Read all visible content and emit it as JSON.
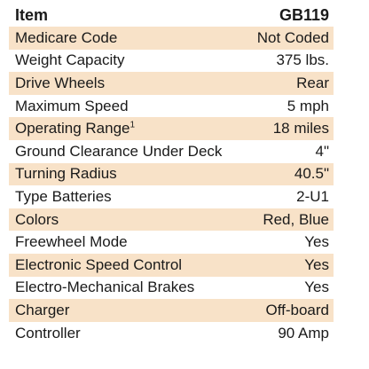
{
  "table": {
    "header": {
      "label": "Item",
      "value": "GB119"
    },
    "rows": [
      {
        "label": "Medicare Code",
        "value": "Not Coded",
        "shaded": true
      },
      {
        "label": "Weight Capacity",
        "value": "375 lbs.",
        "shaded": false
      },
      {
        "label": "Drive Wheels",
        "value": "Rear",
        "shaded": true
      },
      {
        "label": "Maximum Speed",
        "value": "5 mph",
        "shaded": false
      },
      {
        "label": "Operating Range",
        "sup": "1",
        "value": "18 miles",
        "shaded": true
      },
      {
        "label": "Ground Clearance Under Deck",
        "value": "4\"",
        "shaded": false
      },
      {
        "label": "Turning Radius",
        "value": "40.5\"",
        "shaded": true
      },
      {
        "label": "Type Batteries",
        "value": "2-U1",
        "shaded": false
      },
      {
        "label": "Colors",
        "value": "Red, Blue",
        "shaded": true
      },
      {
        "label": "Freewheel Mode",
        "value": "Yes",
        "shaded": false
      },
      {
        "label": "Electronic Speed Control",
        "value": "Yes",
        "shaded": true
      },
      {
        "label": "Electro-Mechanical Brakes",
        "value": "Yes",
        "shaded": false
      },
      {
        "label": "Charger",
        "value": "Off-board",
        "shaded": true
      },
      {
        "label": "Controller",
        "value": "90 Amp",
        "shaded": false
      }
    ],
    "shade_color": "#f8e2c8"
  }
}
